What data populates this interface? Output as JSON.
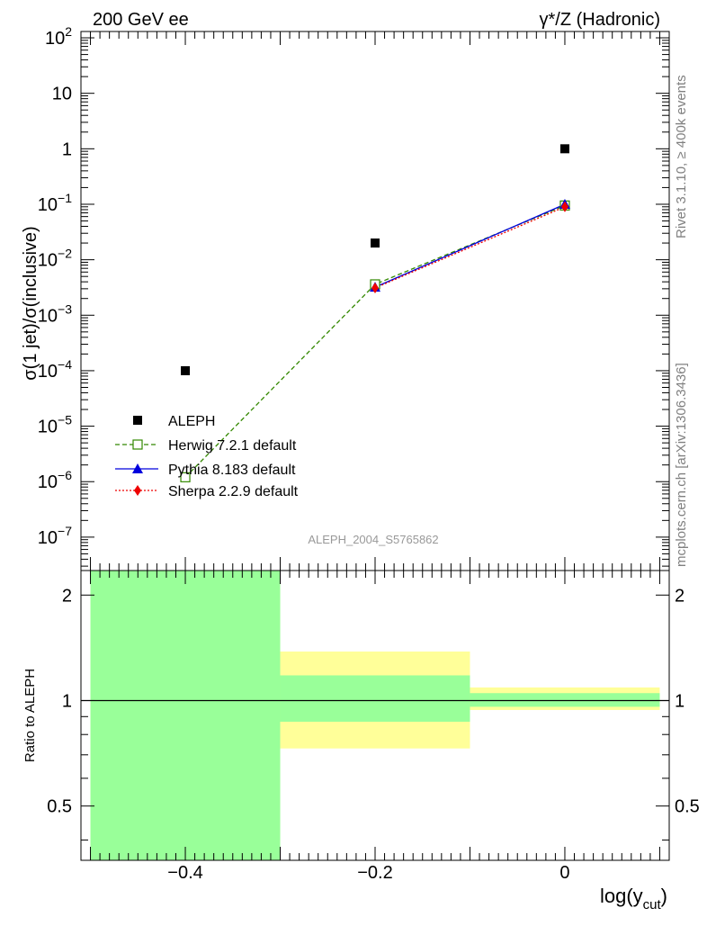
{
  "header": {
    "left": "200 GeV ee",
    "right_main": "γ*/Z (Hadronic)"
  },
  "side": {
    "rivet": "Rivet 3.1.10, ≥ 400k events",
    "mcplots": "mcplots.cern.ch [arXiv:1306.3436]"
  },
  "analysis_id": "ALEPH_2004_S5765862",
  "colors": {
    "data": "#000000",
    "herwig": "#338800",
    "herwig_fill": "#ffffff",
    "pythia": "#0000dd",
    "sherpa": "#ee0000",
    "band_inner": "#99ff99",
    "band_outer": "#ffff99"
  },
  "chart_data": [
    {
      "type": "scatter",
      "title": "",
      "xlabel": "log(y_cut)",
      "xlabel_main": "log(y",
      "xlabel_sub": "cut",
      "xlabel_close": ")",
      "ylabel": "σ(1 jet)/σ(inclusive)",
      "yscale": "log",
      "xlim": [
        -0.51,
        0.11
      ],
      "ylim": [
        2.5e-08,
        130
      ],
      "x_ticks": [
        -0.4,
        -0.2,
        0
      ],
      "x_tick_labels": [
        "−0.4",
        "−0.2",
        "0"
      ],
      "y_ticks": [
        {
          "base": "10",
          "exp": "2",
          "value": 100
        },
        {
          "base": "10",
          "exp": "",
          "value": 10
        },
        {
          "base": "1",
          "exp": "",
          "value": 1
        },
        {
          "base": "10",
          "exp": "−1",
          "value": 0.1
        },
        {
          "base": "10",
          "exp": "−2",
          "value": 0.01
        },
        {
          "base": "10",
          "exp": "−3",
          "value": 0.001
        },
        {
          "base": "10",
          "exp": "−4",
          "value": 0.0001
        },
        {
          "base": "10",
          "exp": "−5",
          "value": 1e-05
        },
        {
          "base": "10",
          "exp": "−6",
          "value": 1e-06
        },
        {
          "base": "10",
          "exp": "−7",
          "value": 1e-07
        }
      ],
      "legend_position": "bottom-left",
      "series": [
        {
          "name": "ALEPH",
          "key": "data",
          "marker": "square",
          "x": [
            -0.4,
            -0.2,
            0
          ],
          "y": [
            0.0001,
            0.02,
            1.0
          ]
        },
        {
          "name": "Herwig 7.2.1 default",
          "key": "herwig",
          "marker": "open-square",
          "line": "dashed",
          "x": [
            -0.4,
            -0.2,
            0
          ],
          "y": [
            1.2e-06,
            0.0036,
            0.095
          ]
        },
        {
          "name": "Pythia 8.183 default",
          "key": "pythia",
          "marker": "triangle",
          "line": "solid",
          "x": [
            -0.2,
            0
          ],
          "y": [
            0.0032,
            0.1
          ]
        },
        {
          "name": "Sherpa 2.2.9 default",
          "key": "sherpa",
          "marker": "diamond",
          "line": "dotted",
          "x": [
            -0.2,
            0
          ],
          "y": [
            0.0031,
            0.09
          ]
        }
      ]
    },
    {
      "type": "area",
      "ylabel": "Ratio to ALEPH",
      "yscale": "log",
      "ylim": [
        0.35,
        2.35
      ],
      "y_ticks": [
        2,
        1,
        0.5
      ],
      "y_tick_labels": [
        "2",
        "1",
        "0.5"
      ],
      "bands": [
        {
          "x0": -0.5,
          "x1": -0.3,
          "inner": [
            0.0,
            100.0
          ],
          "outer": [
            0.0,
            100.0
          ]
        },
        {
          "x0": -0.3,
          "x1": -0.1,
          "inner": [
            0.87,
            1.18
          ],
          "outer": [
            0.73,
            1.38
          ]
        },
        {
          "x0": -0.1,
          "x1": 0.1,
          "inner": [
            0.96,
            1.05
          ],
          "outer": [
            0.94,
            1.09
          ]
        }
      ],
      "reference": 1.0
    }
  ]
}
